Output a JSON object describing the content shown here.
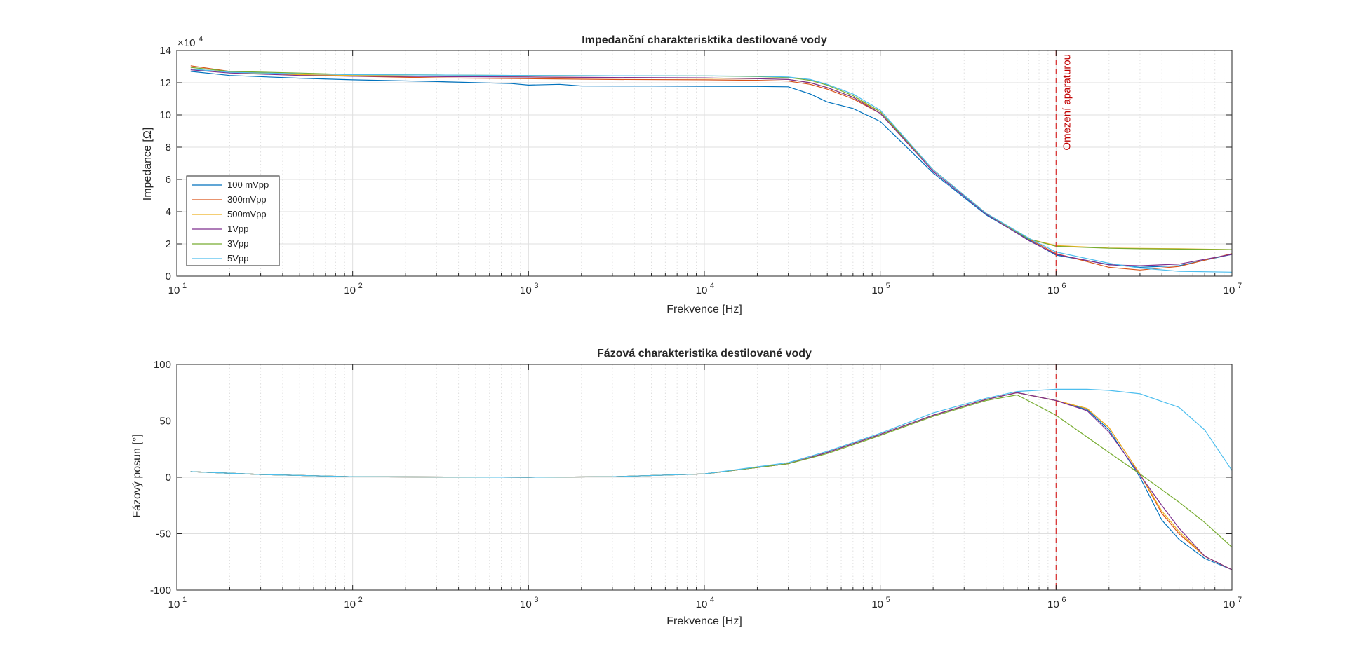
{
  "colors": {
    "series": [
      "#0072BD",
      "#D95319",
      "#EDB120",
      "#7E2F8E",
      "#77AC30",
      "#4DBEEE"
    ],
    "annotation": "#D93A3A",
    "grid": "#DFDFDF",
    "axis": "#262626"
  },
  "chart_data": [
    {
      "type": "line",
      "title": "Impedanční charakterisktika destilované vody",
      "xlabel": "Frekvence [Hz]",
      "ylabel": "Impedance [Ω]",
      "xscale": "log",
      "xlim": [
        10,
        10000000
      ],
      "ylim": [
        0,
        140000
      ],
      "xticks": [
        10,
        100,
        1000,
        10000,
        100000,
        1000000,
        10000000
      ],
      "yticks": [
        0,
        20000,
        40000,
        60000,
        80000,
        100000,
        120000,
        140000
      ],
      "ytick_labels": [
        "0",
        "2",
        "4",
        "6",
        "8",
        "10",
        "12",
        "14"
      ],
      "y_exponent": "4",
      "grid": true,
      "legend": "bottom-left",
      "annotation": {
        "text": "Omezení aparaturou",
        "x": 1000000
      },
      "series": [
        {
          "name": "100 mVpp",
          "x": [
            12,
            20,
            50,
            100,
            300,
            800,
            1000,
            1500,
            2000,
            5000,
            10000,
            20000,
            30000,
            40000,
            50000,
            70000,
            100000,
            200000,
            400000,
            700000,
            1000000,
            2000000,
            3000000,
            5000000,
            10000000
          ],
          "y": [
            127000,
            124500,
            122800,
            121800,
            120700,
            119500,
            118500,
            119000,
            118000,
            117900,
            117800,
            117700,
            117500,
            113000,
            108000,
            104000,
            96000,
            64000,
            38000,
            22500,
            13000,
            7200,
            5500,
            6500,
            13500
          ]
        },
        {
          "name": "300mVpp",
          "x": [
            12,
            20,
            50,
            100,
            300,
            1000,
            3000,
            10000,
            20000,
            30000,
            40000,
            50000,
            70000,
            100000,
            200000,
            400000,
            700000,
            1000000,
            2000000,
            3000000,
            5000000,
            10000000
          ],
          "y": [
            130500,
            127000,
            125000,
            124000,
            123000,
            122500,
            122000,
            121800,
            121500,
            121000,
            119000,
            116000,
            110000,
            101000,
            66000,
            39000,
            23000,
            14000,
            5500,
            3800,
            6000,
            14000
          ]
        },
        {
          "name": "500mVpp",
          "x": [
            12,
            20,
            50,
            100,
            300,
            1000,
            3000,
            10000,
            20000,
            30000,
            40000,
            50000,
            70000,
            100000,
            200000,
            400000,
            700000,
            1000000,
            2000000,
            3000000,
            5000000,
            10000000
          ],
          "y": [
            128500,
            126500,
            125000,
            124500,
            124000,
            123500,
            123000,
            122800,
            122500,
            122000,
            120000,
            117000,
            111000,
            102000,
            66000,
            39000,
            23000,
            19000,
            17500,
            17200,
            17000,
            16500
          ]
        },
        {
          "name": "1Vpp",
          "x": [
            12,
            20,
            50,
            100,
            300,
            1000,
            3000,
            10000,
            20000,
            30000,
            40000,
            50000,
            70000,
            100000,
            200000,
            400000,
            700000,
            1000000,
            2000000,
            3000000,
            5000000,
            10000000
          ],
          "y": [
            128000,
            126000,
            124500,
            124000,
            123800,
            123500,
            123200,
            123000,
            122500,
            122000,
            120000,
            117000,
            111000,
            101000,
            65000,
            38500,
            22000,
            13500,
            7000,
            6500,
            7500,
            13500
          ]
        },
        {
          "name": "3Vpp",
          "x": [
            12,
            20,
            50,
            100,
            300,
            1000,
            3000,
            10000,
            20000,
            30000,
            40000,
            50000,
            70000,
            100000,
            200000,
            400000,
            700000,
            1000000,
            2000000,
            3000000,
            5000000,
            10000000
          ],
          "y": [
            129500,
            127000,
            126000,
            125000,
            124800,
            124500,
            124300,
            124200,
            123800,
            123200,
            121500,
            118500,
            112000,
            102000,
            66000,
            39000,
            23000,
            18500,
            17300,
            17000,
            16800,
            16500
          ]
        },
        {
          "name": "5Vpp",
          "x": [
            12,
            20,
            50,
            100,
            300,
            1000,
            3000,
            10000,
            20000,
            30000,
            40000,
            50000,
            70000,
            100000,
            200000,
            400000,
            700000,
            1000000,
            2000000,
            3000000,
            5000000,
            10000000
          ],
          "y": [
            128500,
            126500,
            125500,
            125000,
            124800,
            124500,
            124300,
            124200,
            124000,
            123500,
            122000,
            119000,
            113000,
            103000,
            66000,
            39000,
            23500,
            15000,
            8000,
            5000,
            3000,
            2500
          ]
        }
      ]
    },
    {
      "type": "line",
      "title": "Fázová charakteristika destilované vody",
      "xlabel": "Frekvence [Hz]",
      "ylabel": "Fázový posun [°]",
      "xscale": "log",
      "xlim": [
        10,
        10000000
      ],
      "ylim": [
        -100,
        100
      ],
      "xticks": [
        10,
        100,
        1000,
        10000,
        100000,
        1000000,
        10000000
      ],
      "yticks": [
        -100,
        -50,
        0,
        50,
        100
      ],
      "grid": true,
      "annotation": {
        "x": 1000000
      },
      "series": [
        {
          "name": "100 mVpp",
          "x": [
            12,
            30,
            100,
            1000,
            3000,
            10000,
            30000,
            50000,
            100000,
            200000,
            400000,
            600000,
            1000000,
            1500000,
            2000000,
            3000000,
            4000000,
            5000000,
            7000000,
            10000000
          ],
          "y": [
            5,
            2.5,
            0.5,
            0,
            0.5,
            3,
            12,
            22,
            38,
            55,
            69,
            75,
            68,
            60,
            42,
            0,
            -38,
            -55,
            -72,
            -82
          ]
        },
        {
          "name": "300mVpp",
          "x": [
            12,
            30,
            100,
            1000,
            3000,
            10000,
            30000,
            50000,
            100000,
            200000,
            400000,
            600000,
            1000000,
            1500000,
            2000000,
            3000000,
            4000000,
            5000000,
            7000000,
            10000000
          ],
          "y": [
            5,
            2.5,
            0.5,
            0,
            0.5,
            3,
            12,
            22,
            38,
            55,
            69,
            75,
            68,
            61,
            44,
            3,
            -32,
            -50,
            -70,
            -82
          ]
        },
        {
          "name": "500mVpp",
          "x": [
            12,
            30,
            100,
            1000,
            3000,
            10000,
            30000,
            50000,
            100000,
            200000,
            400000,
            600000,
            1000000,
            1500000,
            2000000,
            3000000,
            4000000,
            5000000,
            7000000,
            10000000
          ],
          "y": [
            5,
            2.5,
            0.5,
            0,
            0.5,
            3,
            12,
            22,
            38,
            55,
            69,
            75,
            68,
            61,
            44,
            3,
            -30,
            -48,
            -70,
            -82
          ]
        },
        {
          "name": "1Vpp",
          "x": [
            12,
            30,
            100,
            1000,
            3000,
            10000,
            30000,
            50000,
            100000,
            200000,
            400000,
            600000,
            1000000,
            1500000,
            2000000,
            3000000,
            4000000,
            5000000,
            7000000,
            10000000
          ],
          "y": [
            5,
            2.5,
            0.5,
            0,
            0.5,
            3,
            12,
            22,
            38,
            55,
            69,
            75,
            68,
            59,
            40,
            2,
            -25,
            -45,
            -70,
            -82
          ]
        },
        {
          "name": "3Vpp",
          "x": [
            12,
            30,
            100,
            1000,
            3000,
            10000,
            30000,
            50000,
            100000,
            200000,
            400000,
            600000,
            1000000,
            2000000,
            3000000,
            5000000,
            7000000,
            10000000
          ],
          "y": [
            5,
            2.5,
            0.5,
            0,
            0.5,
            3,
            12,
            21,
            37,
            54,
            68,
            73,
            55,
            22,
            3,
            -22,
            -40,
            -62
          ]
        },
        {
          "name": "5Vpp",
          "x": [
            12,
            30,
            100,
            1000,
            3000,
            10000,
            30000,
            50000,
            100000,
            200000,
            400000,
            600000,
            1000000,
            1500000,
            2000000,
            3000000,
            5000000,
            7000000,
            10000000
          ],
          "y": [
            5,
            2.5,
            0.5,
            0,
            0.5,
            3,
            13,
            23,
            39,
            57,
            70,
            76,
            78,
            78,
            77,
            74,
            62,
            42,
            6
          ]
        }
      ]
    }
  ]
}
